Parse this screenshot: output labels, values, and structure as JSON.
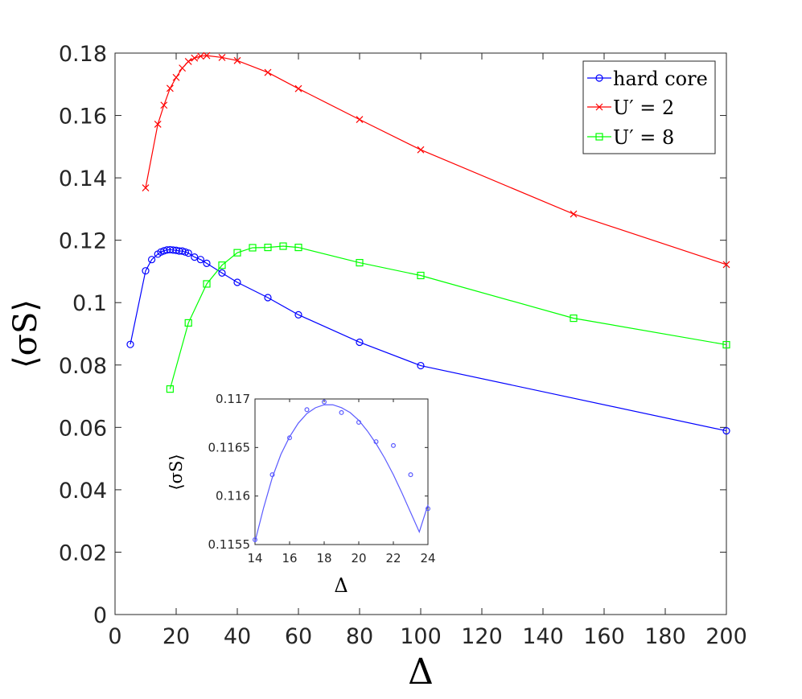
{
  "chart_data": [
    {
      "type": "line",
      "xlabel": "Δ",
      "ylabel": "⟨σS⟩",
      "xlim": [
        0,
        200
      ],
      "ylim": [
        0,
        0.18
      ],
      "x_ticks": [
        "0",
        "20",
        "40",
        "60",
        "80",
        "100",
        "120",
        "140",
        "160",
        "180",
        "200"
      ],
      "y_ticks": [
        "0",
        "0.02",
        "0.04",
        "0.06",
        "0.08",
        "0.1",
        "0.12",
        "0.14",
        "0.16",
        "0.18"
      ],
      "legend_position": "top-right",
      "grid": false,
      "series": [
        {
          "name": "hard core",
          "color": "#0000ff",
          "marker": "circle",
          "x": [
            5,
            10,
            12,
            14,
            15,
            16,
            17,
            18,
            19,
            20,
            21,
            22,
            23,
            24,
            26,
            28,
            30,
            35,
            40,
            50,
            60,
            80,
            100,
            200
          ],
          "y": [
            0.0866,
            0.1102,
            0.1138,
            0.11555,
            0.11622,
            0.1166,
            0.11689,
            0.11697,
            0.11686,
            0.11676,
            0.11656,
            0.11652,
            0.11622,
            0.11587,
            0.1146,
            0.1138,
            0.1126,
            0.1095,
            0.1065,
            0.1016,
            0.0961,
            0.0873,
            0.0798,
            0.0589
          ]
        },
        {
          "name": "U′ = 2",
          "color": "#ff0000",
          "marker": "x",
          "x": [
            10,
            14,
            16,
            18,
            20,
            22,
            24,
            26,
            28,
            30,
            35,
            40,
            50,
            60,
            80,
            100,
            150,
            200
          ],
          "y": [
            0.1368,
            0.1572,
            0.1633,
            0.1687,
            0.1722,
            0.1752,
            0.1773,
            0.1784,
            0.179,
            0.1792,
            0.1786,
            0.1776,
            0.1738,
            0.1686,
            0.1587,
            0.149,
            0.1284,
            0.1122
          ]
        },
        {
          "name": "U′ = 8",
          "color": "#00ff00",
          "marker": "square",
          "x": [
            18,
            24,
            30,
            35,
            40,
            45,
            50,
            55,
            60,
            80,
            100,
            150,
            200
          ],
          "y": [
            0.0723,
            0.0935,
            0.106,
            0.112,
            0.116,
            0.1176,
            0.1177,
            0.1181,
            0.1177,
            0.1128,
            0.1087,
            0.095,
            0.0865
          ]
        }
      ]
    },
    {
      "type": "scatter",
      "xlabel": "Δ",
      "ylabel": "⟨σS⟩",
      "xlim": [
        14,
        24
      ],
      "ylim": [
        0.1155,
        0.117
      ],
      "x_ticks": [
        "14",
        "16",
        "18",
        "20",
        "22",
        "24"
      ],
      "y_ticks": [
        "0.1155",
        "0.116",
        "0.1165",
        "0.117"
      ],
      "series": [
        {
          "name": "",
          "color": "#5b5bff",
          "marker": "circle",
          "x": [
            14,
            15,
            16,
            17,
            18,
            19,
            20,
            21,
            22,
            23,
            24
          ],
          "y": [
            0.11555,
            0.11622,
            0.1166,
            0.11689,
            0.11697,
            0.11686,
            0.11676,
            0.11656,
            0.11652,
            0.11622,
            0.11587
          ],
          "fit_x": [
            14,
            14.5,
            15,
            15.5,
            16,
            16.5,
            17,
            17.5,
            18,
            18.5,
            19,
            19.5,
            20,
            20.5,
            21,
            21.5,
            22,
            22.5,
            23,
            23.5,
            24
          ],
          "fit_y": [
            0.11553,
            0.11588,
            0.11619,
            0.11643,
            0.11661,
            0.11675,
            0.11685,
            0.11691,
            0.11694,
            0.11694,
            0.11691,
            0.11686,
            0.11678,
            0.11667,
            0.11654,
            0.11639,
            0.11622,
            0.11603,
            0.11583,
            0.11563,
            0.11591
          ]
        }
      ]
    }
  ]
}
